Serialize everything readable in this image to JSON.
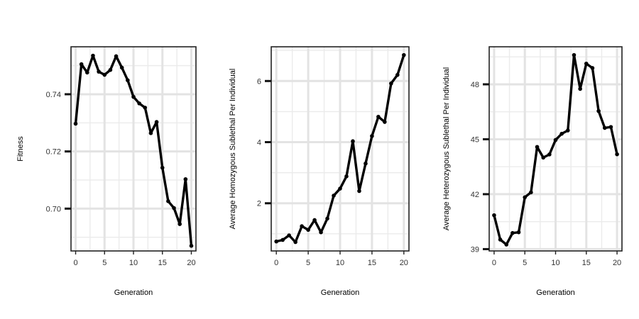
{
  "chart_data": [
    {
      "type": "line",
      "title": "",
      "xlabel": "Generation",
      "ylabel": "Fitness",
      "xlim": [
        -0.8,
        20.8
      ],
      "ylim": [
        0.6852,
        0.7566
      ],
      "xticks": [
        0,
        5,
        10,
        15,
        20
      ],
      "xtick_labels": [
        "0",
        "5",
        "10",
        "15",
        "20"
      ],
      "yticks": [
        0.7,
        0.72,
        0.74
      ],
      "ytick_labels": [
        "0.70",
        "0.72",
        "0.74"
      ],
      "grid": true,
      "x": [
        0,
        1,
        2,
        3,
        4,
        5,
        6,
        7,
        8,
        9,
        10,
        11,
        12,
        13,
        14,
        15,
        16,
        17,
        18,
        19,
        20
      ],
      "series": [
        {
          "values": [
            0.7297,
            0.7505,
            0.7476,
            0.7535,
            0.7479,
            0.7468,
            0.7485,
            0.7533,
            0.7493,
            0.7449,
            0.7391,
            0.7368,
            0.7353,
            0.7264,
            0.7303,
            0.7143,
            0.7026,
            0.7002,
            0.6946,
            0.7103,
            0.687
          ]
        }
      ],
      "line_color": "#000000"
    },
    {
      "type": "line",
      "title": "",
      "xlabel": "Generation",
      "ylabel": "Average Homozygous Sublethal Per Individual",
      "xlim": [
        -0.8,
        20.8
      ],
      "ylim": [
        0.44,
        7.12
      ],
      "xticks": [
        0,
        5,
        10,
        15,
        20
      ],
      "xtick_labels": [
        "0",
        "5",
        "10",
        "15",
        "20"
      ],
      "yticks": [
        2,
        4,
        6
      ],
      "ytick_labels": [
        "2",
        "4",
        "6"
      ],
      "grid": true,
      "x": [
        0,
        1,
        2,
        3,
        4,
        5,
        6,
        7,
        8,
        9,
        10,
        11,
        12,
        13,
        14,
        15,
        16,
        17,
        18,
        19,
        20
      ],
      "series": [
        {
          "values": [
            0.75,
            0.8,
            0.95,
            0.73,
            1.25,
            1.13,
            1.45,
            1.05,
            1.5,
            2.25,
            2.48,
            2.88,
            4.03,
            2.4,
            3.3,
            4.2,
            4.83,
            4.66,
            5.92,
            6.2,
            6.85
          ]
        }
      ],
      "line_color": "#000000"
    },
    {
      "type": "line",
      "title": "",
      "xlabel": "Generation",
      "ylabel": "Average Heterozygous Sublethal Per Individual",
      "xlim": [
        -0.8,
        20.8
      ],
      "ylim": [
        38.9,
        50.05
      ],
      "xticks": [
        0,
        5,
        10,
        15,
        20
      ],
      "xtick_labels": [
        "0",
        "5",
        "10",
        "15",
        "20"
      ],
      "yticks": [
        39,
        42,
        45,
        48
      ],
      "ytick_labels": [
        "39",
        "42",
        "45",
        "48"
      ],
      "grid": true,
      "x": [
        0,
        1,
        2,
        3,
        4,
        5,
        6,
        7,
        8,
        9,
        10,
        11,
        12,
        13,
        14,
        15,
        16,
        17,
        18,
        19,
        20
      ],
      "series": [
        {
          "values": [
            40.85,
            39.52,
            39.25,
            39.88,
            39.92,
            41.83,
            42.1,
            44.58,
            44.0,
            44.17,
            44.96,
            45.3,
            45.48,
            49.6,
            47.75,
            49.13,
            48.89,
            46.54,
            45.62,
            45.67,
            44.18
          ]
        }
      ],
      "line_color": "#000000"
    }
  ]
}
